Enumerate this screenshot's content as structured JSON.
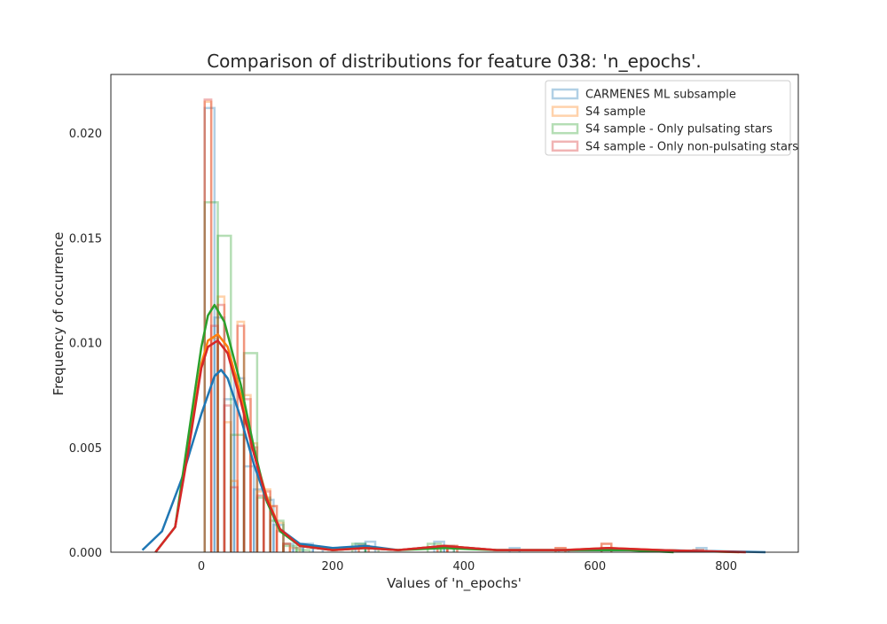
{
  "chart_data": {
    "type": "histogram+kde",
    "title": "Comparison of distributions for feature 038: 'n_epochs'.",
    "xlabel": "Values of 'n_epochs'",
    "ylabel": "Frequency of occurrence",
    "xlim": [
      -138,
      910
    ],
    "ylim": [
      0,
      0.0228
    ],
    "xticks": [
      0,
      200,
      400,
      600,
      800
    ],
    "yticks": [
      0.0,
      0.005,
      0.01,
      0.015,
      0.02
    ],
    "ytick_labels": [
      "0.000",
      "0.005",
      "0.010",
      "0.015",
      "0.020"
    ],
    "grid": false,
    "legend_position": "top-right",
    "series": [
      {
        "name": "CARMENES ML subsample",
        "color": "#1f77b4",
        "hist": [
          [
            5,
            20,
            0.0212
          ],
          [
            20,
            35,
            0.0112
          ],
          [
            35,
            50,
            0.0073
          ],
          [
            50,
            65,
            0.0083
          ],
          [
            65,
            80,
            0.0041
          ],
          [
            80,
            95,
            0.003
          ],
          [
            95,
            110,
            0.0025
          ],
          [
            110,
            125,
            0.0013
          ],
          [
            125,
            140,
            0.0004
          ],
          [
            140,
            155,
            0.0002
          ],
          [
            155,
            170,
            0.0004
          ],
          [
            170,
            185,
            0.0002
          ],
          [
            235,
            250,
            0.0004
          ],
          [
            250,
            265,
            0.0005
          ],
          [
            355,
            370,
            0.0005
          ],
          [
            370,
            385,
            0.0003
          ],
          [
            470,
            485,
            0.0002
          ],
          [
            545,
            560,
            0.0001
          ],
          [
            610,
            625,
            0.0002
          ],
          [
            755,
            770,
            0.0002
          ]
        ],
        "kde": [
          [
            -90,
            0.0001
          ],
          [
            -60,
            0.001
          ],
          [
            -30,
            0.0035
          ],
          [
            0,
            0.0066
          ],
          [
            20,
            0.0084
          ],
          [
            30,
            0.0087
          ],
          [
            40,
            0.0083
          ],
          [
            60,
            0.0064
          ],
          [
            80,
            0.0042
          ],
          [
            100,
            0.0024
          ],
          [
            120,
            0.0011
          ],
          [
            150,
            0.0004
          ],
          [
            200,
            0.0002
          ],
          [
            250,
            0.0003
          ],
          [
            300,
            0.0001
          ],
          [
            370,
            0.0003
          ],
          [
            450,
            0.0001
          ],
          [
            500,
            0.0001
          ],
          [
            600,
            0.0001
          ],
          [
            700,
            0.0001
          ],
          [
            860,
            0.0
          ]
        ]
      },
      {
        "name": "S4 sample",
        "color": "#ff7f0e",
        "hist": [
          [
            5,
            15,
            0.0215
          ],
          [
            15,
            25,
            0.0102
          ],
          [
            25,
            35,
            0.0122
          ],
          [
            35,
            45,
            0.0062
          ],
          [
            45,
            55,
            0.0034
          ],
          [
            55,
            65,
            0.011
          ],
          [
            65,
            75,
            0.0075
          ],
          [
            75,
            85,
            0.0052
          ],
          [
            85,
            95,
            0.0029
          ],
          [
            95,
            105,
            0.003
          ],
          [
            105,
            115,
            0.0022
          ],
          [
            115,
            125,
            0.0014
          ],
          [
            125,
            135,
            0.0004
          ],
          [
            135,
            150,
            0.0002
          ],
          [
            240,
            255,
            0.0003
          ],
          [
            360,
            375,
            0.0003
          ],
          [
            375,
            390,
            0.0003
          ],
          [
            540,
            555,
            0.0002
          ],
          [
            610,
            625,
            0.0004
          ],
          [
            750,
            765,
            0.0001
          ]
        ],
        "kde": [
          [
            -70,
            0.0
          ],
          [
            -40,
            0.0012
          ],
          [
            -20,
            0.005
          ],
          [
            0,
            0.009
          ],
          [
            10,
            0.0101
          ],
          [
            25,
            0.0104
          ],
          [
            40,
            0.0098
          ],
          [
            60,
            0.0075
          ],
          [
            80,
            0.0048
          ],
          [
            100,
            0.0026
          ],
          [
            120,
            0.0011
          ],
          [
            150,
            0.0003
          ],
          [
            200,
            0.0001
          ],
          [
            250,
            0.0002
          ],
          [
            300,
            0.0001
          ],
          [
            370,
            0.0003
          ],
          [
            450,
            0.0001
          ],
          [
            550,
            0.0001
          ],
          [
            620,
            0.0002
          ],
          [
            700,
            0.0001
          ],
          [
            820,
            0.0
          ]
        ]
      },
      {
        "name": "S4 sample - Only pulsating stars",
        "color": "#2ca02c",
        "hist": [
          [
            5,
            25,
            0.0167
          ],
          [
            25,
            45,
            0.0151
          ],
          [
            45,
            65,
            0.0056
          ],
          [
            65,
            85,
            0.0095
          ],
          [
            85,
            105,
            0.0026
          ],
          [
            105,
            125,
            0.0015
          ],
          [
            125,
            145,
            0.0003
          ],
          [
            145,
            165,
            0.0001
          ],
          [
            230,
            250,
            0.0004
          ],
          [
            250,
            270,
            0.0002
          ],
          [
            345,
            365,
            0.0004
          ],
          [
            365,
            385,
            0.0002
          ]
        ],
        "kde": [
          [
            -70,
            0.0
          ],
          [
            -40,
            0.0012
          ],
          [
            -20,
            0.0055
          ],
          [
            0,
            0.0098
          ],
          [
            10,
            0.0113
          ],
          [
            20,
            0.0118
          ],
          [
            35,
            0.011
          ],
          [
            60,
            0.008
          ],
          [
            80,
            0.005
          ],
          [
            100,
            0.0024
          ],
          [
            120,
            0.001
          ],
          [
            150,
            0.0003
          ],
          [
            200,
            0.0001
          ],
          [
            250,
            0.0002
          ],
          [
            300,
            0.0001
          ],
          [
            370,
            0.0002
          ],
          [
            450,
            0.0001
          ],
          [
            550,
            0.0001
          ],
          [
            650,
            0.0001
          ],
          [
            720,
            0.0
          ]
        ]
      },
      {
        "name": "S4 sample - Only non-pulsating stars",
        "color": "#d62728",
        "hist": [
          [
            5,
            15,
            0.0216
          ],
          [
            15,
            25,
            0.0108
          ],
          [
            25,
            35,
            0.0118
          ],
          [
            35,
            45,
            0.007
          ],
          [
            45,
            55,
            0.0031
          ],
          [
            55,
            65,
            0.0108
          ],
          [
            65,
            75,
            0.0073
          ],
          [
            75,
            85,
            0.005
          ],
          [
            85,
            95,
            0.0027
          ],
          [
            95,
            105,
            0.0029
          ],
          [
            105,
            115,
            0.0022
          ],
          [
            115,
            125,
            0.001
          ],
          [
            125,
            135,
            0.0004
          ],
          [
            240,
            255,
            0.0003
          ],
          [
            360,
            375,
            0.0002
          ],
          [
            375,
            390,
            0.0003
          ],
          [
            540,
            555,
            0.0002
          ],
          [
            610,
            625,
            0.0004
          ],
          [
            750,
            765,
            0.0001
          ]
        ],
        "kde": [
          [
            -70,
            0.0
          ],
          [
            -40,
            0.0012
          ],
          [
            -20,
            0.0048
          ],
          [
            0,
            0.0088
          ],
          [
            10,
            0.0098
          ],
          [
            25,
            0.0101
          ],
          [
            40,
            0.0095
          ],
          [
            60,
            0.0072
          ],
          [
            80,
            0.0047
          ],
          [
            100,
            0.0025
          ],
          [
            120,
            0.0011
          ],
          [
            150,
            0.0003
          ],
          [
            200,
            0.0001
          ],
          [
            250,
            0.0002
          ],
          [
            300,
            0.0001
          ],
          [
            370,
            0.0003
          ],
          [
            450,
            0.0001
          ],
          [
            550,
            0.0001
          ],
          [
            620,
            0.0002
          ],
          [
            700,
            0.0001
          ],
          [
            830,
            0.0
          ]
        ]
      }
    ]
  }
}
